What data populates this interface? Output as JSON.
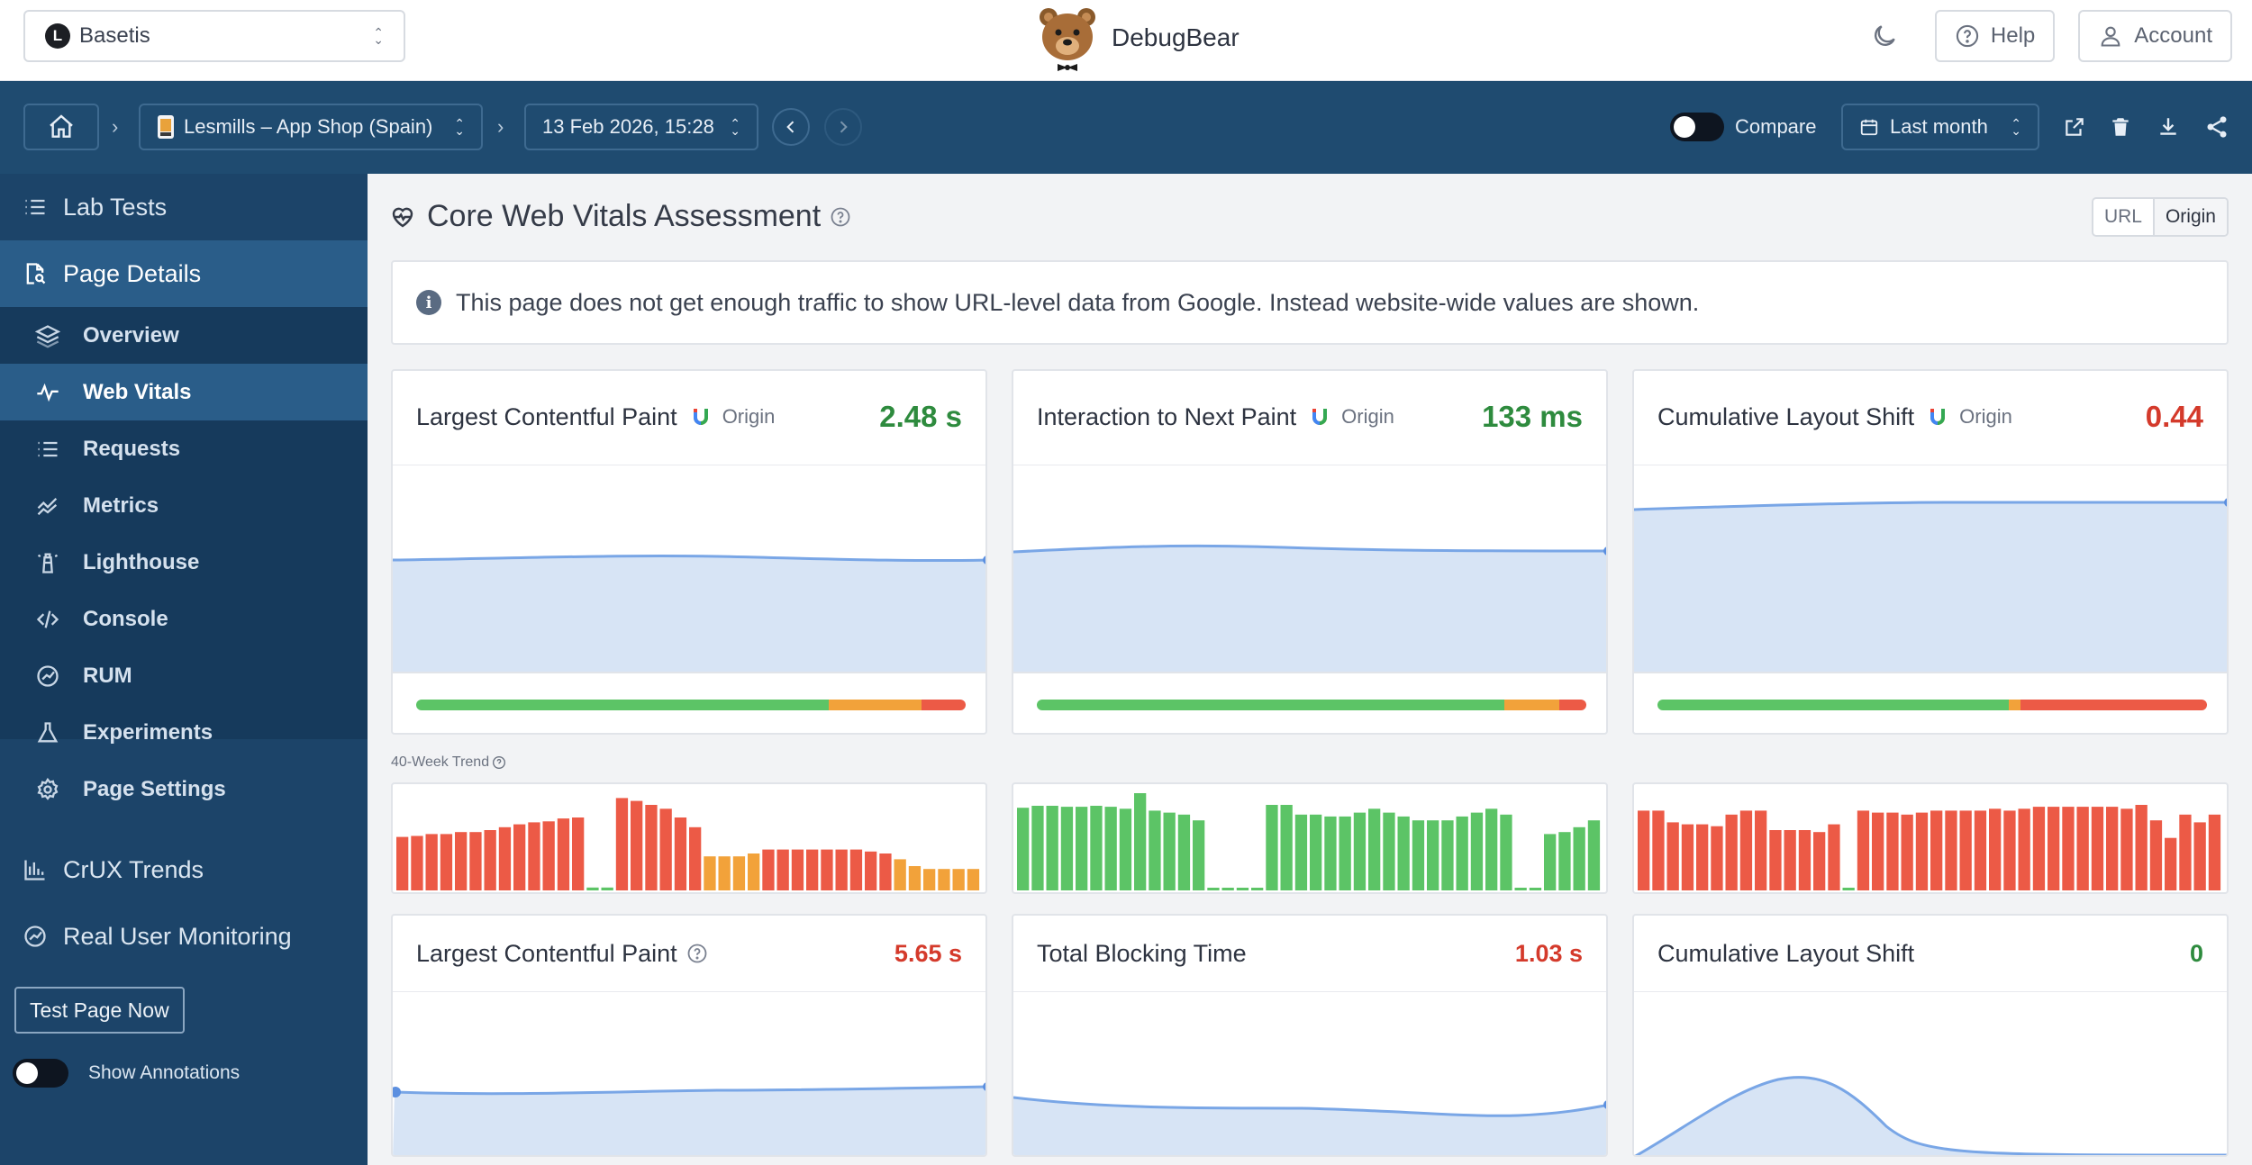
{
  "topbar": {
    "project": "Basetis",
    "project_logo_letter": "L",
    "brand": "DebugBear",
    "help": "Help",
    "account": "Account"
  },
  "toolbar": {
    "page": "Lesmills – App Shop (Spain)",
    "date": "13 Feb 2026, 15:28",
    "compare": "Compare",
    "range": "Last month"
  },
  "sidebar": {
    "lab_tests": "Lab Tests",
    "page_details": "Page Details",
    "items": [
      {
        "label": "Overview",
        "icon": "layers-icon"
      },
      {
        "label": "Web Vitals",
        "icon": "pulse-icon"
      },
      {
        "label": "Requests",
        "icon": "list-icon"
      },
      {
        "label": "Metrics",
        "icon": "metrics-icon"
      },
      {
        "label": "Lighthouse",
        "icon": "lighthouse-icon"
      },
      {
        "label": "Console",
        "icon": "code-icon"
      },
      {
        "label": "RUM",
        "icon": "gauge-icon"
      },
      {
        "label": "Experiments",
        "icon": "flask-icon"
      },
      {
        "label": "Page Settings",
        "icon": "gear-icon"
      }
    ],
    "crux_trends": "CrUX Trends",
    "rum": "Real User Monitoring",
    "test_now": "Test Page Now",
    "annotations": "Show Annotations"
  },
  "main": {
    "title": "Core Web Vitals Assessment",
    "scope_url": "URL",
    "scope_origin": "Origin",
    "notice": "This page does not get enough traffic to show URL-level data from Google. Instead website-wide values are shown.",
    "trend_label": "40-Week Trend",
    "crux_cards": [
      {
        "name": "Largest Contentful Paint",
        "source": "Origin",
        "value": "2.48 s",
        "status": "good",
        "dist": [
          0.75,
          0.17,
          0.08
        ]
      },
      {
        "name": "Interaction to Next Paint",
        "source": "Origin",
        "value": "133 ms",
        "status": "good",
        "dist": [
          0.85,
          0.1,
          0.05
        ]
      },
      {
        "name": "Cumulative Layout Shift",
        "source": "Origin",
        "value": "0.44",
        "status": "poor",
        "dist": [
          0.64,
          0.02,
          0.34
        ]
      }
    ],
    "lab_cards": [
      {
        "name": "Largest Contentful Paint",
        "value": "5.65 s",
        "status": "poor"
      },
      {
        "name": "Total Blocking Time",
        "value": "1.03 s",
        "status": "poor"
      },
      {
        "name": "Cumulative Layout Shift",
        "value": "0",
        "status": "good"
      }
    ]
  },
  "colors": {
    "good": "#5cc466",
    "needs_improvement": "#f2a23a",
    "poor": "#ec5a46",
    "area": "#d7e4f5",
    "line": "#79a6e6",
    "nav_bg": "#1c4469",
    "nav_active": "#2a5d89"
  },
  "trends": [
    {
      "values": [
        0.55,
        0.56,
        0.58,
        0.58,
        0.6,
        0.6,
        0.62,
        0.65,
        0.68,
        0.7,
        0.71,
        0.74,
        0.75,
        0.03,
        0.03,
        0.95,
        0.92,
        0.88,
        0.84,
        0.75,
        0.65,
        0.35,
        0.35,
        0.35,
        0.38,
        0.42,
        0.42,
        0.42,
        0.42,
        0.42,
        0.42,
        0.42,
        0.4,
        0.38,
        0.32,
        0.25,
        0.22,
        0.22,
        0.22,
        0.22
      ],
      "statuses": [
        "p",
        "p",
        "p",
        "p",
        "p",
        "p",
        "p",
        "p",
        "p",
        "p",
        "p",
        "p",
        "p",
        "g",
        "g",
        "p",
        "p",
        "p",
        "p",
        "p",
        "p",
        "n",
        "n",
        "n",
        "n",
        "p",
        "p",
        "p",
        "p",
        "p",
        "p",
        "p",
        "p",
        "p",
        "n",
        "n",
        "n",
        "n",
        "n",
        "n"
      ]
    },
    {
      "values": [
        0.85,
        0.87,
        0.87,
        0.86,
        0.86,
        0.87,
        0.86,
        0.84,
        1.0,
        0.82,
        0.8,
        0.78,
        0.72,
        0.02,
        0.02,
        0.02,
        0.02,
        0.88,
        0.88,
        0.78,
        0.78,
        0.76,
        0.76,
        0.8,
        0.84,
        0.8,
        0.76,
        0.72,
        0.72,
        0.72,
        0.76,
        0.8,
        0.84,
        0.78,
        0.02,
        0.02,
        0.58,
        0.6,
        0.65,
        0.72
      ],
      "statuses": [
        "g",
        "g",
        "g",
        "g",
        "g",
        "g",
        "g",
        "g",
        "g",
        "g",
        "g",
        "g",
        "g",
        "g",
        "g",
        "g",
        "g",
        "g",
        "g",
        "g",
        "g",
        "g",
        "g",
        "g",
        "g",
        "g",
        "g",
        "g",
        "g",
        "g",
        "g",
        "g",
        "g",
        "g",
        "g",
        "g",
        "g",
        "g",
        "g",
        "g"
      ]
    },
    {
      "values": [
        0.82,
        0.82,
        0.7,
        0.68,
        0.68,
        0.66,
        0.78,
        0.82,
        0.82,
        0.62,
        0.62,
        0.62,
        0.6,
        0.68,
        0.02,
        0.82,
        0.8,
        0.8,
        0.78,
        0.8,
        0.82,
        0.82,
        0.82,
        0.82,
        0.84,
        0.82,
        0.84,
        0.86,
        0.86,
        0.86,
        0.86,
        0.86,
        0.86,
        0.84,
        0.88,
        0.72,
        0.54,
        0.78,
        0.7,
        0.78
      ],
      "statuses": [
        "p",
        "p",
        "p",
        "p",
        "p",
        "p",
        "p",
        "p",
        "p",
        "p",
        "p",
        "p",
        "p",
        "p",
        "g",
        "p",
        "p",
        "p",
        "p",
        "p",
        "p",
        "p",
        "p",
        "p",
        "p",
        "p",
        "p",
        "p",
        "p",
        "p",
        "p",
        "p",
        "p",
        "p",
        "p",
        "p",
        "p",
        "p",
        "p",
        "p"
      ]
    }
  ]
}
